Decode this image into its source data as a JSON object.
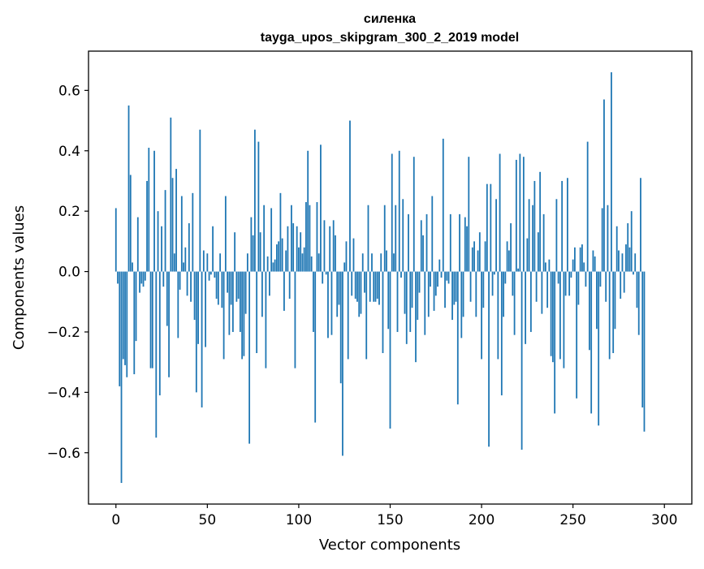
{
  "chart_data": {
    "type": "bar",
    "title_line1": "силенка",
    "title_line2": "tayga_upos_skipgram_300_2_2019 model",
    "xlabel": "Vector components",
    "ylabel": "Components values",
    "xlim": [
      -15,
      315
    ],
    "ylim": [
      -0.77,
      0.73
    ],
    "grid": false,
    "bar_color": "#1f77b4",
    "xticks": [
      0,
      50,
      100,
      150,
      200,
      250,
      300
    ],
    "xtick_labels": [
      "0",
      "50",
      "100",
      "150",
      "200",
      "250",
      "300"
    ],
    "yticks": [
      -0.6,
      -0.4,
      -0.2,
      0.0,
      0.2,
      0.4,
      0.6
    ],
    "ytick_labels": [
      "−0.6",
      "−0.4",
      "−0.2",
      "0.0",
      "0.2",
      "0.4",
      "0.6"
    ],
    "values": [
      0.21,
      -0.04,
      -0.38,
      -0.7,
      -0.29,
      -0.31,
      -0.35,
      0.55,
      0.32,
      0.03,
      -0.34,
      -0.23,
      0.18,
      -0.07,
      -0.04,
      -0.05,
      -0.03,
      0.3,
      0.41,
      -0.32,
      -0.32,
      0.4,
      -0.55,
      0.2,
      -0.41,
      0.15,
      -0.05,
      0.27,
      -0.18,
      -0.35,
      0.51,
      0.31,
      0.06,
      0.34,
      -0.22,
      -0.06,
      0.25,
      0.03,
      0.08,
      -0.08,
      0.16,
      -0.1,
      0.26,
      -0.16,
      -0.4,
      -0.24,
      0.47,
      -0.45,
      0.07,
      -0.25,
      0.06,
      -0.03,
      -0.01,
      0.15,
      -0.02,
      -0.09,
      -0.11,
      0.06,
      -0.12,
      -0.29,
      0.25,
      -0.07,
      -0.21,
      -0.11,
      -0.2,
      0.13,
      -0.1,
      -0.09,
      -0.2,
      -0.29,
      -0.28,
      -0.14,
      0.06,
      -0.57,
      0.18,
      0.12,
      0.47,
      -0.27,
      0.43,
      0.13,
      -0.15,
      0.22,
      -0.32,
      0.05,
      -0.08,
      0.21,
      0.03,
      0.04,
      0.09,
      0.1,
      0.26,
      0.11,
      -0.13,
      0.07,
      0.15,
      -0.09,
      0.22,
      0.16,
      -0.32,
      0.15,
      0.08,
      0.13,
      0.06,
      0.08,
      0.23,
      0.4,
      0.22,
      0.05,
      -0.2,
      -0.5,
      0.23,
      0.06,
      0.42,
      -0.04,
      0.17,
      -0.01,
      -0.22,
      0.15,
      -0.21,
      0.17,
      0.12,
      -0.15,
      -0.11,
      -0.37,
      -0.61,
      0.03,
      0.1,
      -0.29,
      0.5,
      -0.08,
      0.11,
      -0.09,
      -0.1,
      -0.15,
      -0.14,
      0.06,
      -0.07,
      -0.29,
      0.22,
      -0.1,
      0.06,
      -0.1,
      -0.1,
      -0.09,
      -0.11,
      0.06,
      -0.27,
      0.22,
      0.07,
      -0.19,
      -0.52,
      0.39,
      0.06,
      0.22,
      -0.2,
      0.4,
      -0.02,
      0.24,
      -0.14,
      -0.24,
      0.19,
      -0.2,
      -0.12,
      0.38,
      -0.3,
      -0.16,
      -0.07,
      0.17,
      0.12,
      -0.21,
      0.19,
      -0.15,
      -0.05,
      0.25,
      -0.13,
      -0.08,
      -0.05,
      0.04,
      -0.02,
      0.44,
      -0.12,
      -0.03,
      -0.04,
      0.19,
      -0.16,
      -0.11,
      -0.1,
      -0.44,
      0.19,
      -0.22,
      -0.15,
      0.18,
      0.15,
      0.38,
      -0.1,
      0.08,
      0.1,
      -0.15,
      0.07,
      0.13,
      -0.29,
      -0.12,
      0.1,
      0.29,
      -0.58,
      0.29,
      -0.08,
      -0.01,
      0.24,
      -0.29,
      0.39,
      -0.41,
      -0.15,
      -0.04,
      0.1,
      0.07,
      0.16,
      -0.08,
      -0.21,
      0.37,
      0.01,
      0.39,
      -0.59,
      0.38,
      -0.24,
      0.11,
      0.24,
      -0.2,
      0.22,
      0.3,
      -0.1,
      0.13,
      0.33,
      -0.14,
      0.19,
      0.03,
      -0.12,
      0.04,
      -0.28,
      -0.3,
      -0.47,
      0.24,
      -0.04,
      -0.29,
      0.3,
      -0.32,
      -0.08,
      0.31,
      -0.08,
      -0.02,
      0.04,
      0.08,
      -0.42,
      -0.11,
      0.08,
      0.09,
      0.03,
      -0.05,
      0.43,
      -0.26,
      -0.47,
      0.07,
      0.05,
      -0.19,
      -0.51,
      -0.05,
      0.21,
      0.57,
      -0.1,
      0.22,
      -0.29,
      0.66,
      -0.27,
      -0.19,
      0.15,
      0.07,
      -0.09,
      0.06,
      -0.07,
      0.09,
      0.16,
      0.08,
      0.2,
      -0.01,
      0.06,
      -0.12,
      -0.21,
      0.31,
      -0.45,
      -0.53
    ]
  }
}
